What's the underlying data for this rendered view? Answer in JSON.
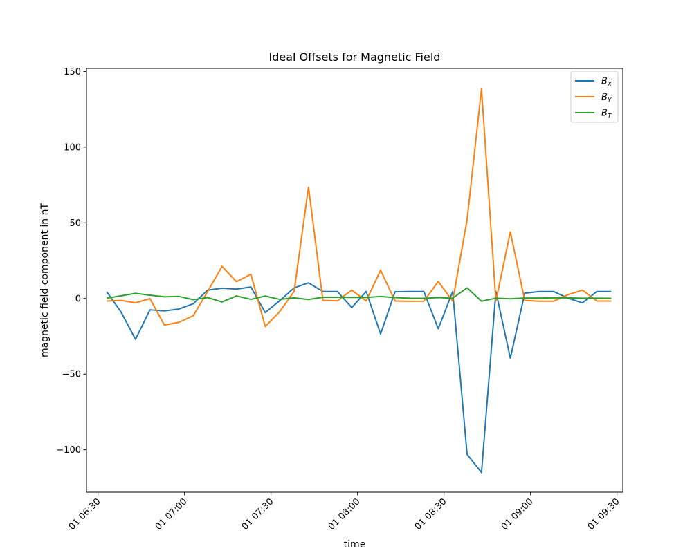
{
  "chart_data": {
    "type": "line",
    "title": "Ideal Offsets for Magnetic Field",
    "xlabel": "time",
    "ylabel": "magnetic field component in nT",
    "ylim": [
      -128,
      152
    ],
    "xlim": [
      "01 06:26",
      "01 09:32"
    ],
    "x_ticks": [
      {
        "time": "06:30",
        "label": "01 06:30"
      },
      {
        "time": "07:00",
        "label": "01 07:00"
      },
      {
        "time": "07:30",
        "label": "01 07:30"
      },
      {
        "time": "08:00",
        "label": "01 08:00"
      },
      {
        "time": "08:30",
        "label": "01 08:30"
      },
      {
        "time": "09:00",
        "label": "01 09:00"
      },
      {
        "time": "09:30",
        "label": "01 09:30"
      }
    ],
    "y_ticks": [
      {
        "value": 150,
        "label": "150"
      },
      {
        "value": 100,
        "label": "100"
      },
      {
        "value": 50,
        "label": "50"
      },
      {
        "value": 0,
        "label": "0"
      },
      {
        "value": -50,
        "label": "−50"
      },
      {
        "value": -100,
        "label": "−100"
      }
    ],
    "grid": false,
    "legend": "top-right",
    "x": [
      "06:33",
      "06:38",
      "06:43",
      "06:48",
      "06:53",
      "06:58",
      "07:03",
      "07:08",
      "07:13",
      "07:18",
      "07:23",
      "07:28",
      "07:33",
      "07:38",
      "07:43",
      "07:48",
      "07:53",
      "07:58",
      "08:03",
      "08:08",
      "08:13",
      "08:18",
      "08:23",
      "08:28",
      "08:33",
      "08:38",
      "08:43",
      "08:48",
      "08:53",
      "08:58",
      "09:03",
      "09:08",
      "09:13",
      "09:18",
      "09:23",
      "09:28"
    ],
    "series": [
      {
        "name": "B",
        "subscript": "X",
        "color": "#1f77b4",
        "values": [
          4.5,
          -9,
          -27,
          -7.5,
          -8.2,
          -7,
          -3.5,
          5.5,
          6.8,
          6.2,
          7.6,
          -9.3,
          -1.5,
          7,
          10.3,
          4.6,
          4.6,
          -6,
          4.6,
          -23.5,
          4.4,
          4.6,
          4.6,
          -20,
          4.6,
          -103,
          -115,
          4.6,
          -39.5,
          3.5,
          4.6,
          4.6,
          0.2,
          -2.9,
          4.6,
          4.6
        ]
      },
      {
        "name": "B",
        "subscript": "Y",
        "color": "#ff7f0e",
        "values": [
          -1.7,
          -1.3,
          -2.9,
          -0.1,
          -17.5,
          -15.8,
          -11.4,
          4.5,
          21.2,
          11.1,
          16,
          -18.5,
          -8.7,
          4.6,
          73.6,
          -1.3,
          -1.6,
          5.5,
          -1.6,
          18.7,
          -1.7,
          -1.9,
          -1.8,
          11.2,
          -1.7,
          52,
          138.5,
          -1.7,
          44,
          -1.3,
          -1.8,
          -1.8,
          2.5,
          5.5,
          -1.7,
          -1.7
        ]
      },
      {
        "name": "B",
        "subscript": "T",
        "color": "#2ca02c",
        "values": [
          0.2,
          1.8,
          3.4,
          2.2,
          1.1,
          1.4,
          -0.8,
          0.6,
          -2.3,
          1.7,
          -0.6,
          1.6,
          -0.6,
          0.4,
          -0.7,
          0.8,
          0.8,
          0.7,
          0.7,
          1.3,
          0.6,
          0.2,
          0.1,
          0.6,
          0.2,
          7,
          -1.8,
          0.2,
          -0.2,
          0.3,
          0.3,
          0.4,
          0.4,
          0.2,
          0.2,
          0.1
        ]
      }
    ]
  }
}
